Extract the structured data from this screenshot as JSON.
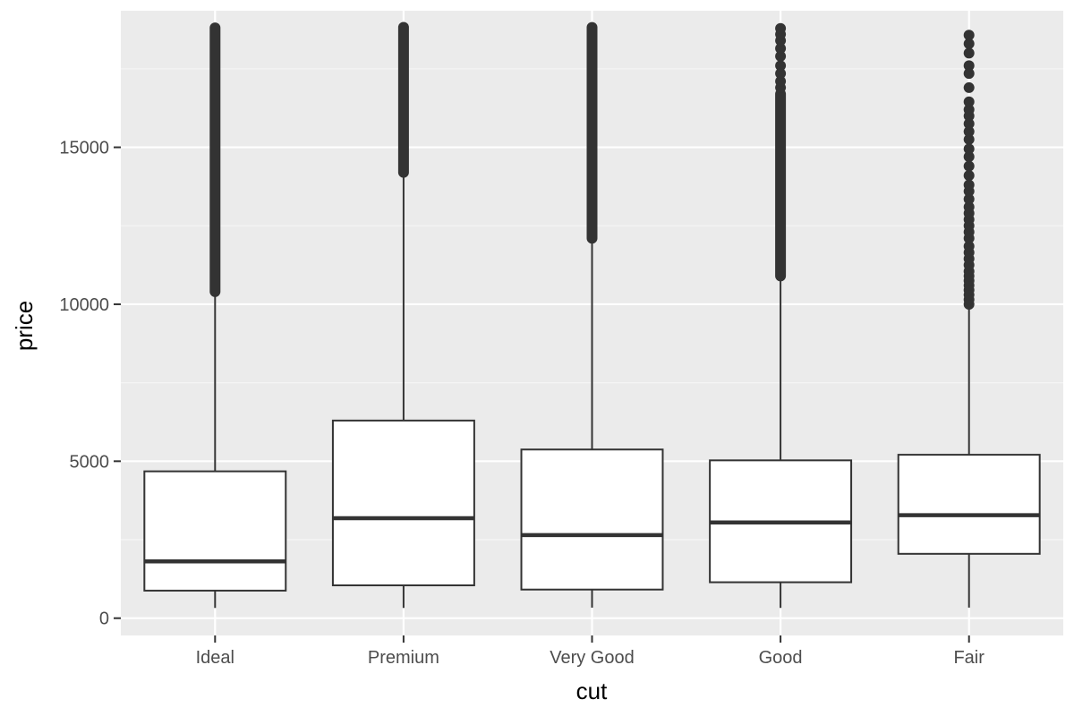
{
  "chart_data": {
    "type": "boxplot",
    "title": "",
    "xlabel": "cut",
    "ylabel": "price",
    "ylim": [
      -550,
      19350
    ],
    "yticks": [
      0,
      5000,
      10000,
      15000
    ],
    "ytick_labels": [
      "0",
      "5000",
      "10000",
      "15000"
    ],
    "minor_yticks": [
      2500,
      7500,
      12500,
      17500
    ],
    "grid": true,
    "categories": [
      "Ideal",
      "Premium",
      "Very Good",
      "Good",
      "Fair"
    ],
    "boxes": [
      {
        "category": "Ideal",
        "whisker_low": 326,
        "q1": 878,
        "median": 1810,
        "q3": 4678,
        "whisker_high": 10373,
        "outliers_dense": [
          10400,
          18806
        ],
        "outliers": []
      },
      {
        "category": "Premium",
        "whisker_low": 326,
        "q1": 1046,
        "median": 3185,
        "q3": 6296,
        "whisker_high": 14170,
        "outliers_dense": [
          14200,
          18823
        ],
        "outliers": []
      },
      {
        "category": "Very Good",
        "whisker_low": 336,
        "q1": 912,
        "median": 2648,
        "q3": 5373,
        "whisker_high": 12061,
        "outliers_dense": [
          12100,
          18818
        ],
        "outliers": []
      },
      {
        "category": "Good",
        "whisker_low": 327,
        "q1": 1145,
        "median": 3050,
        "q3": 5028,
        "whisker_high": 10800,
        "outliers_dense": [
          10900,
          16700
        ],
        "outliers": [
          16900,
          17100,
          17350,
          17600,
          17900,
          18150,
          18400,
          18600,
          18788
        ]
      },
      {
        "category": "Fair",
        "whisker_low": 337,
        "q1": 2050,
        "median": 3282,
        "q3": 5206,
        "whisker_high": 9900,
        "outliers_dense": [],
        "outliers": [
          10000,
          10150,
          10300,
          10450,
          10600,
          10750,
          10900,
          11050,
          11250,
          11450,
          11650,
          11850,
          12100,
          12300,
          12500,
          12700,
          12900,
          13100,
          13350,
          13600,
          13800,
          14100,
          14400,
          14700,
          14950,
          15250,
          15500,
          15750,
          16000,
          16200,
          16450,
          16900,
          17350,
          17600,
          18000,
          18300,
          18574
        ]
      }
    ]
  },
  "colors": {
    "panel_background": "#ebebeb",
    "grid_major": "#ffffff",
    "grid_minor": "#f5f5f5",
    "box_fill": "#ffffff",
    "line": "#333333",
    "tick_label": "#4d4d4d",
    "axis_title": "#000000"
  }
}
